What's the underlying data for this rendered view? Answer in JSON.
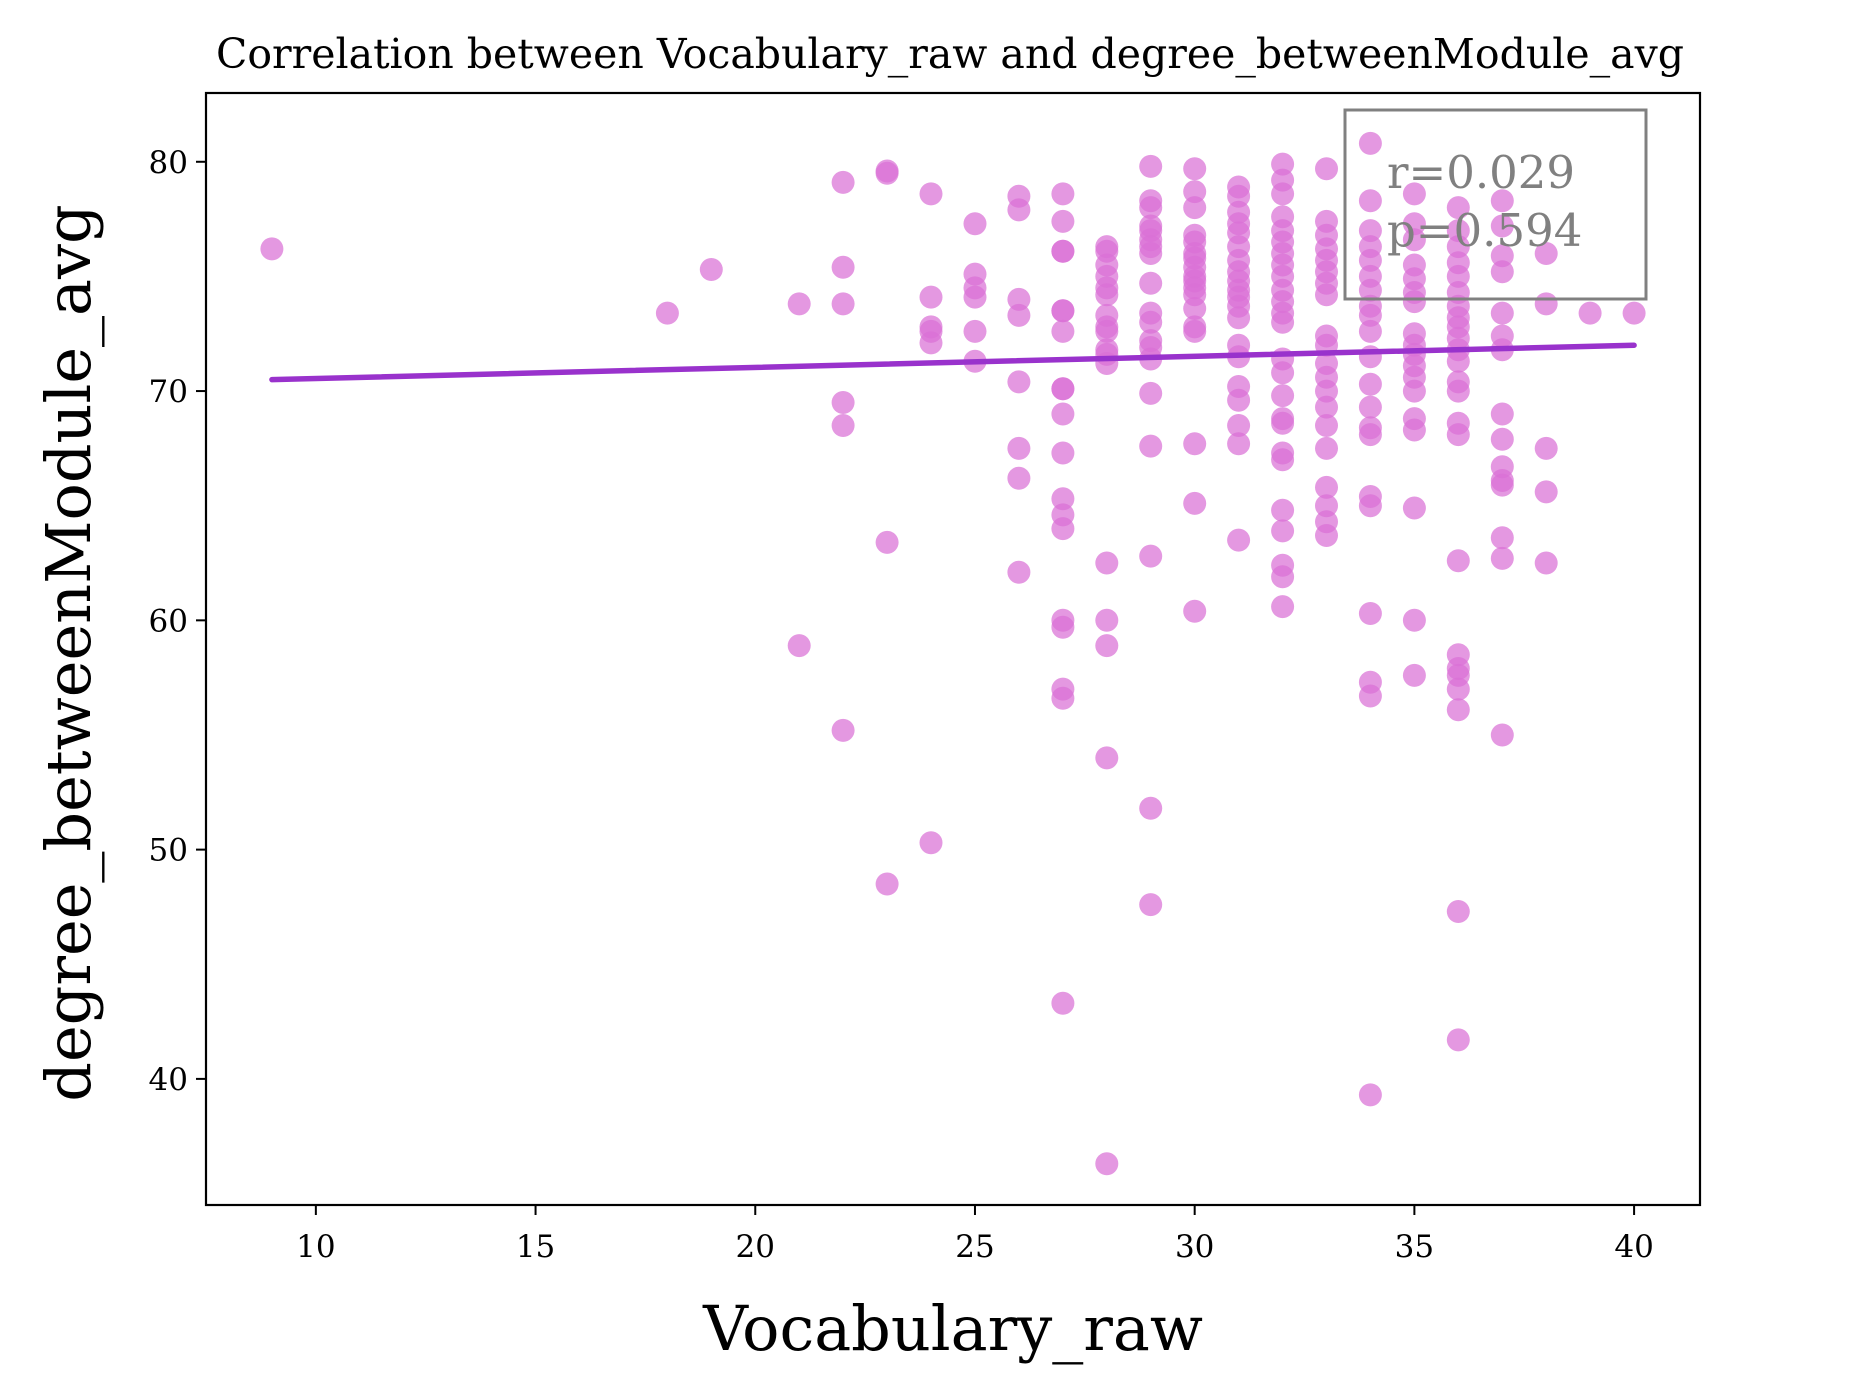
{
  "chart_data": {
    "type": "scatter",
    "title": "Correlation between Vocabulary_raw and degree_betweenModule_avg",
    "xlabel": "Vocabulary_raw",
    "ylabel": "degree_betweenModule_avg",
    "xlim": [
      7.5,
      41.5
    ],
    "ylim": [
      34.5,
      83
    ],
    "xticks": [
      10,
      15,
      20,
      25,
      30,
      35,
      40
    ],
    "yticks": [
      40,
      50,
      60,
      70,
      80
    ],
    "grid": false,
    "colors": {
      "points": "#da70d6",
      "regression": "#9932cc",
      "stats_box": "#808080"
    },
    "regression_line": {
      "x": [
        9,
        40
      ],
      "y": [
        70.5,
        72.0
      ]
    },
    "annotation": {
      "r": "r=0.029",
      "p": "p=0.594",
      "location": "top-right"
    },
    "points": [
      [
        9,
        76.2
      ],
      [
        18,
        73.4
      ],
      [
        19,
        75.3
      ],
      [
        21,
        73.8
      ],
      [
        21,
        58.9
      ],
      [
        22,
        79.1
      ],
      [
        22,
        75.4
      ],
      [
        22,
        73.8
      ],
      [
        22,
        69.5
      ],
      [
        22,
        68.5
      ],
      [
        22,
        55.2
      ],
      [
        23,
        79.6
      ],
      [
        23,
        79.5
      ],
      [
        23,
        63.4
      ],
      [
        23,
        48.5
      ],
      [
        24,
        78.6
      ],
      [
        24,
        74.1
      ],
      [
        24,
        72.8
      ],
      [
        24,
        72.6
      ],
      [
        24,
        72.1
      ],
      [
        24,
        50.3
      ],
      [
        25,
        77.3
      ],
      [
        25,
        75.1
      ],
      [
        25,
        74.5
      ],
      [
        25,
        74.1
      ],
      [
        25,
        72.6
      ],
      [
        25,
        71.3
      ],
      [
        26,
        78.5
      ],
      [
        26,
        77.9
      ],
      [
        26,
        74.0
      ],
      [
        26,
        73.3
      ],
      [
        26,
        70.4
      ],
      [
        26,
        67.5
      ],
      [
        26,
        66.2
      ],
      [
        26,
        62.1
      ],
      [
        27,
        78.6
      ],
      [
        27,
        77.4
      ],
      [
        27,
        76.1
      ],
      [
        27,
        76.1
      ],
      [
        27,
        73.5
      ],
      [
        27,
        73.5
      ],
      [
        27,
        72.6
      ],
      [
        27,
        70.1
      ],
      [
        27,
        70.1
      ],
      [
        27,
        69.0
      ],
      [
        27,
        67.3
      ],
      [
        27,
        65.3
      ],
      [
        27,
        64.6
      ],
      [
        27,
        64.0
      ],
      [
        27,
        60.0
      ],
      [
        27,
        59.7
      ],
      [
        27,
        57.0
      ],
      [
        27,
        56.6
      ],
      [
        27,
        43.3
      ],
      [
        28,
        76.3
      ],
      [
        28,
        76.1
      ],
      [
        28,
        75.5
      ],
      [
        28,
        75.0
      ],
      [
        28,
        74.5
      ],
      [
        28,
        74.2
      ],
      [
        28,
        73.3
      ],
      [
        28,
        72.8
      ],
      [
        28,
        72.6
      ],
      [
        28,
        71.8
      ],
      [
        28,
        71.6
      ],
      [
        28,
        71.2
      ],
      [
        28,
        62.5
      ],
      [
        28,
        60.0
      ],
      [
        28,
        58.9
      ],
      [
        28,
        54.0
      ],
      [
        28,
        36.3
      ],
      [
        29,
        79.8
      ],
      [
        29,
        78.3
      ],
      [
        29,
        78.0
      ],
      [
        29,
        77.2
      ],
      [
        29,
        77.0
      ],
      [
        29,
        76.6
      ],
      [
        29,
        76.3
      ],
      [
        29,
        76.0
      ],
      [
        29,
        74.7
      ],
      [
        29,
        73.4
      ],
      [
        29,
        73.0
      ],
      [
        29,
        72.2
      ],
      [
        29,
        71.9
      ],
      [
        29,
        71.4
      ],
      [
        29,
        69.9
      ],
      [
        29,
        67.6
      ],
      [
        29,
        62.8
      ],
      [
        29,
        51.8
      ],
      [
        29,
        47.6
      ],
      [
        30,
        79.7
      ],
      [
        30,
        78.7
      ],
      [
        30,
        78.0
      ],
      [
        30,
        76.8
      ],
      [
        30,
        76.5
      ],
      [
        30,
        76.0
      ],
      [
        30,
        75.8
      ],
      [
        30,
        75.4
      ],
      [
        30,
        75.0
      ],
      [
        30,
        74.8
      ],
      [
        30,
        74.5
      ],
      [
        30,
        74.2
      ],
      [
        30,
        73.6
      ],
      [
        30,
        72.8
      ],
      [
        30,
        72.6
      ],
      [
        30,
        67.7
      ],
      [
        30,
        65.1
      ],
      [
        30,
        60.4
      ],
      [
        31,
        78.9
      ],
      [
        31,
        78.5
      ],
      [
        31,
        77.8
      ],
      [
        31,
        77.3
      ],
      [
        31,
        76.9
      ],
      [
        31,
        76.3
      ],
      [
        31,
        75.7
      ],
      [
        31,
        75.2
      ],
      [
        31,
        74.8
      ],
      [
        31,
        74.4
      ],
      [
        31,
        74.1
      ],
      [
        31,
        73.7
      ],
      [
        31,
        73.2
      ],
      [
        31,
        72.0
      ],
      [
        31,
        71.5
      ],
      [
        31,
        70.2
      ],
      [
        31,
        69.6
      ],
      [
        31,
        68.5
      ],
      [
        31,
        67.7
      ],
      [
        31,
        63.5
      ],
      [
        32,
        79.9
      ],
      [
        32,
        79.2
      ],
      [
        32,
        78.6
      ],
      [
        32,
        77.6
      ],
      [
        32,
        77.0
      ],
      [
        32,
        76.5
      ],
      [
        32,
        76.0
      ],
      [
        32,
        75.5
      ],
      [
        32,
        75.0
      ],
      [
        32,
        74.4
      ],
      [
        32,
        73.9
      ],
      [
        32,
        73.4
      ],
      [
        32,
        73.0
      ],
      [
        32,
        71.4
      ],
      [
        32,
        70.8
      ],
      [
        32,
        69.8
      ],
      [
        32,
        68.8
      ],
      [
        32,
        68.6
      ],
      [
        32,
        67.3
      ],
      [
        32,
        67.0
      ],
      [
        32,
        64.8
      ],
      [
        32,
        63.9
      ],
      [
        32,
        62.4
      ],
      [
        32,
        61.9
      ],
      [
        32,
        60.6
      ],
      [
        33,
        79.7
      ],
      [
        33,
        77.4
      ],
      [
        33,
        76.8
      ],
      [
        33,
        76.2
      ],
      [
        33,
        75.7
      ],
      [
        33,
        75.2
      ],
      [
        33,
        74.7
      ],
      [
        33,
        74.2
      ],
      [
        33,
        72.4
      ],
      [
        33,
        72.0
      ],
      [
        33,
        71.2
      ],
      [
        33,
        70.6
      ],
      [
        33,
        70.0
      ],
      [
        33,
        69.3
      ],
      [
        33,
        68.5
      ],
      [
        33,
        67.5
      ],
      [
        33,
        65.8
      ],
      [
        33,
        65.0
      ],
      [
        33,
        64.3
      ],
      [
        33,
        63.7
      ],
      [
        34,
        80.8
      ],
      [
        34,
        78.3
      ],
      [
        34,
        77.0
      ],
      [
        34,
        76.3
      ],
      [
        34,
        75.7
      ],
      [
        34,
        75.0
      ],
      [
        34,
        74.4
      ],
      [
        34,
        73.7
      ],
      [
        34,
        73.3
      ],
      [
        34,
        72.6
      ],
      [
        34,
        71.5
      ],
      [
        34,
        70.3
      ],
      [
        34,
        69.3
      ],
      [
        34,
        68.4
      ],
      [
        34,
        68.1
      ],
      [
        34,
        65.4
      ],
      [
        34,
        65.0
      ],
      [
        34,
        60.3
      ],
      [
        34,
        57.3
      ],
      [
        34,
        56.7
      ],
      [
        34,
        39.3
      ],
      [
        35,
        78.6
      ],
      [
        35,
        77.3
      ],
      [
        35,
        76.6
      ],
      [
        35,
        75.5
      ],
      [
        35,
        74.9
      ],
      [
        35,
        74.3
      ],
      [
        35,
        73.9
      ],
      [
        35,
        72.5
      ],
      [
        35,
        72.0
      ],
      [
        35,
        71.6
      ],
      [
        35,
        71.1
      ],
      [
        35,
        70.6
      ],
      [
        35,
        70.0
      ],
      [
        35,
        68.8
      ],
      [
        35,
        68.3
      ],
      [
        35,
        64.9
      ],
      [
        35,
        60.0
      ],
      [
        35,
        57.6
      ],
      [
        36,
        78.0
      ],
      [
        36,
        77.0
      ],
      [
        36,
        76.3
      ],
      [
        36,
        75.6
      ],
      [
        36,
        75.0
      ],
      [
        36,
        74.3
      ],
      [
        36,
        73.7
      ],
      [
        36,
        73.2
      ],
      [
        36,
        72.8
      ],
      [
        36,
        72.3
      ],
      [
        36,
        71.8
      ],
      [
        36,
        71.3
      ],
      [
        36,
        70.4
      ],
      [
        36,
        70.0
      ],
      [
        36,
        68.6
      ],
      [
        36,
        68.1
      ],
      [
        36,
        62.6
      ],
      [
        36,
        58.5
      ],
      [
        36,
        57.9
      ],
      [
        36,
        57.6
      ],
      [
        36,
        57.0
      ],
      [
        36,
        56.1
      ],
      [
        36,
        47.3
      ],
      [
        36,
        41.7
      ],
      [
        37,
        78.3
      ],
      [
        37,
        77.2
      ],
      [
        37,
        75.9
      ],
      [
        37,
        75.2
      ],
      [
        37,
        73.4
      ],
      [
        37,
        72.4
      ],
      [
        37,
        71.8
      ],
      [
        37,
        69.0
      ],
      [
        37,
        67.9
      ],
      [
        37,
        66.7
      ],
      [
        37,
        66.1
      ],
      [
        37,
        65.9
      ],
      [
        37,
        63.6
      ],
      [
        37,
        62.7
      ],
      [
        37,
        55.0
      ],
      [
        38,
        76.0
      ],
      [
        38,
        73.8
      ],
      [
        38,
        67.5
      ],
      [
        38,
        65.6
      ],
      [
        38,
        62.5
      ],
      [
        39,
        73.4
      ],
      [
        40,
        73.4
      ]
    ]
  }
}
